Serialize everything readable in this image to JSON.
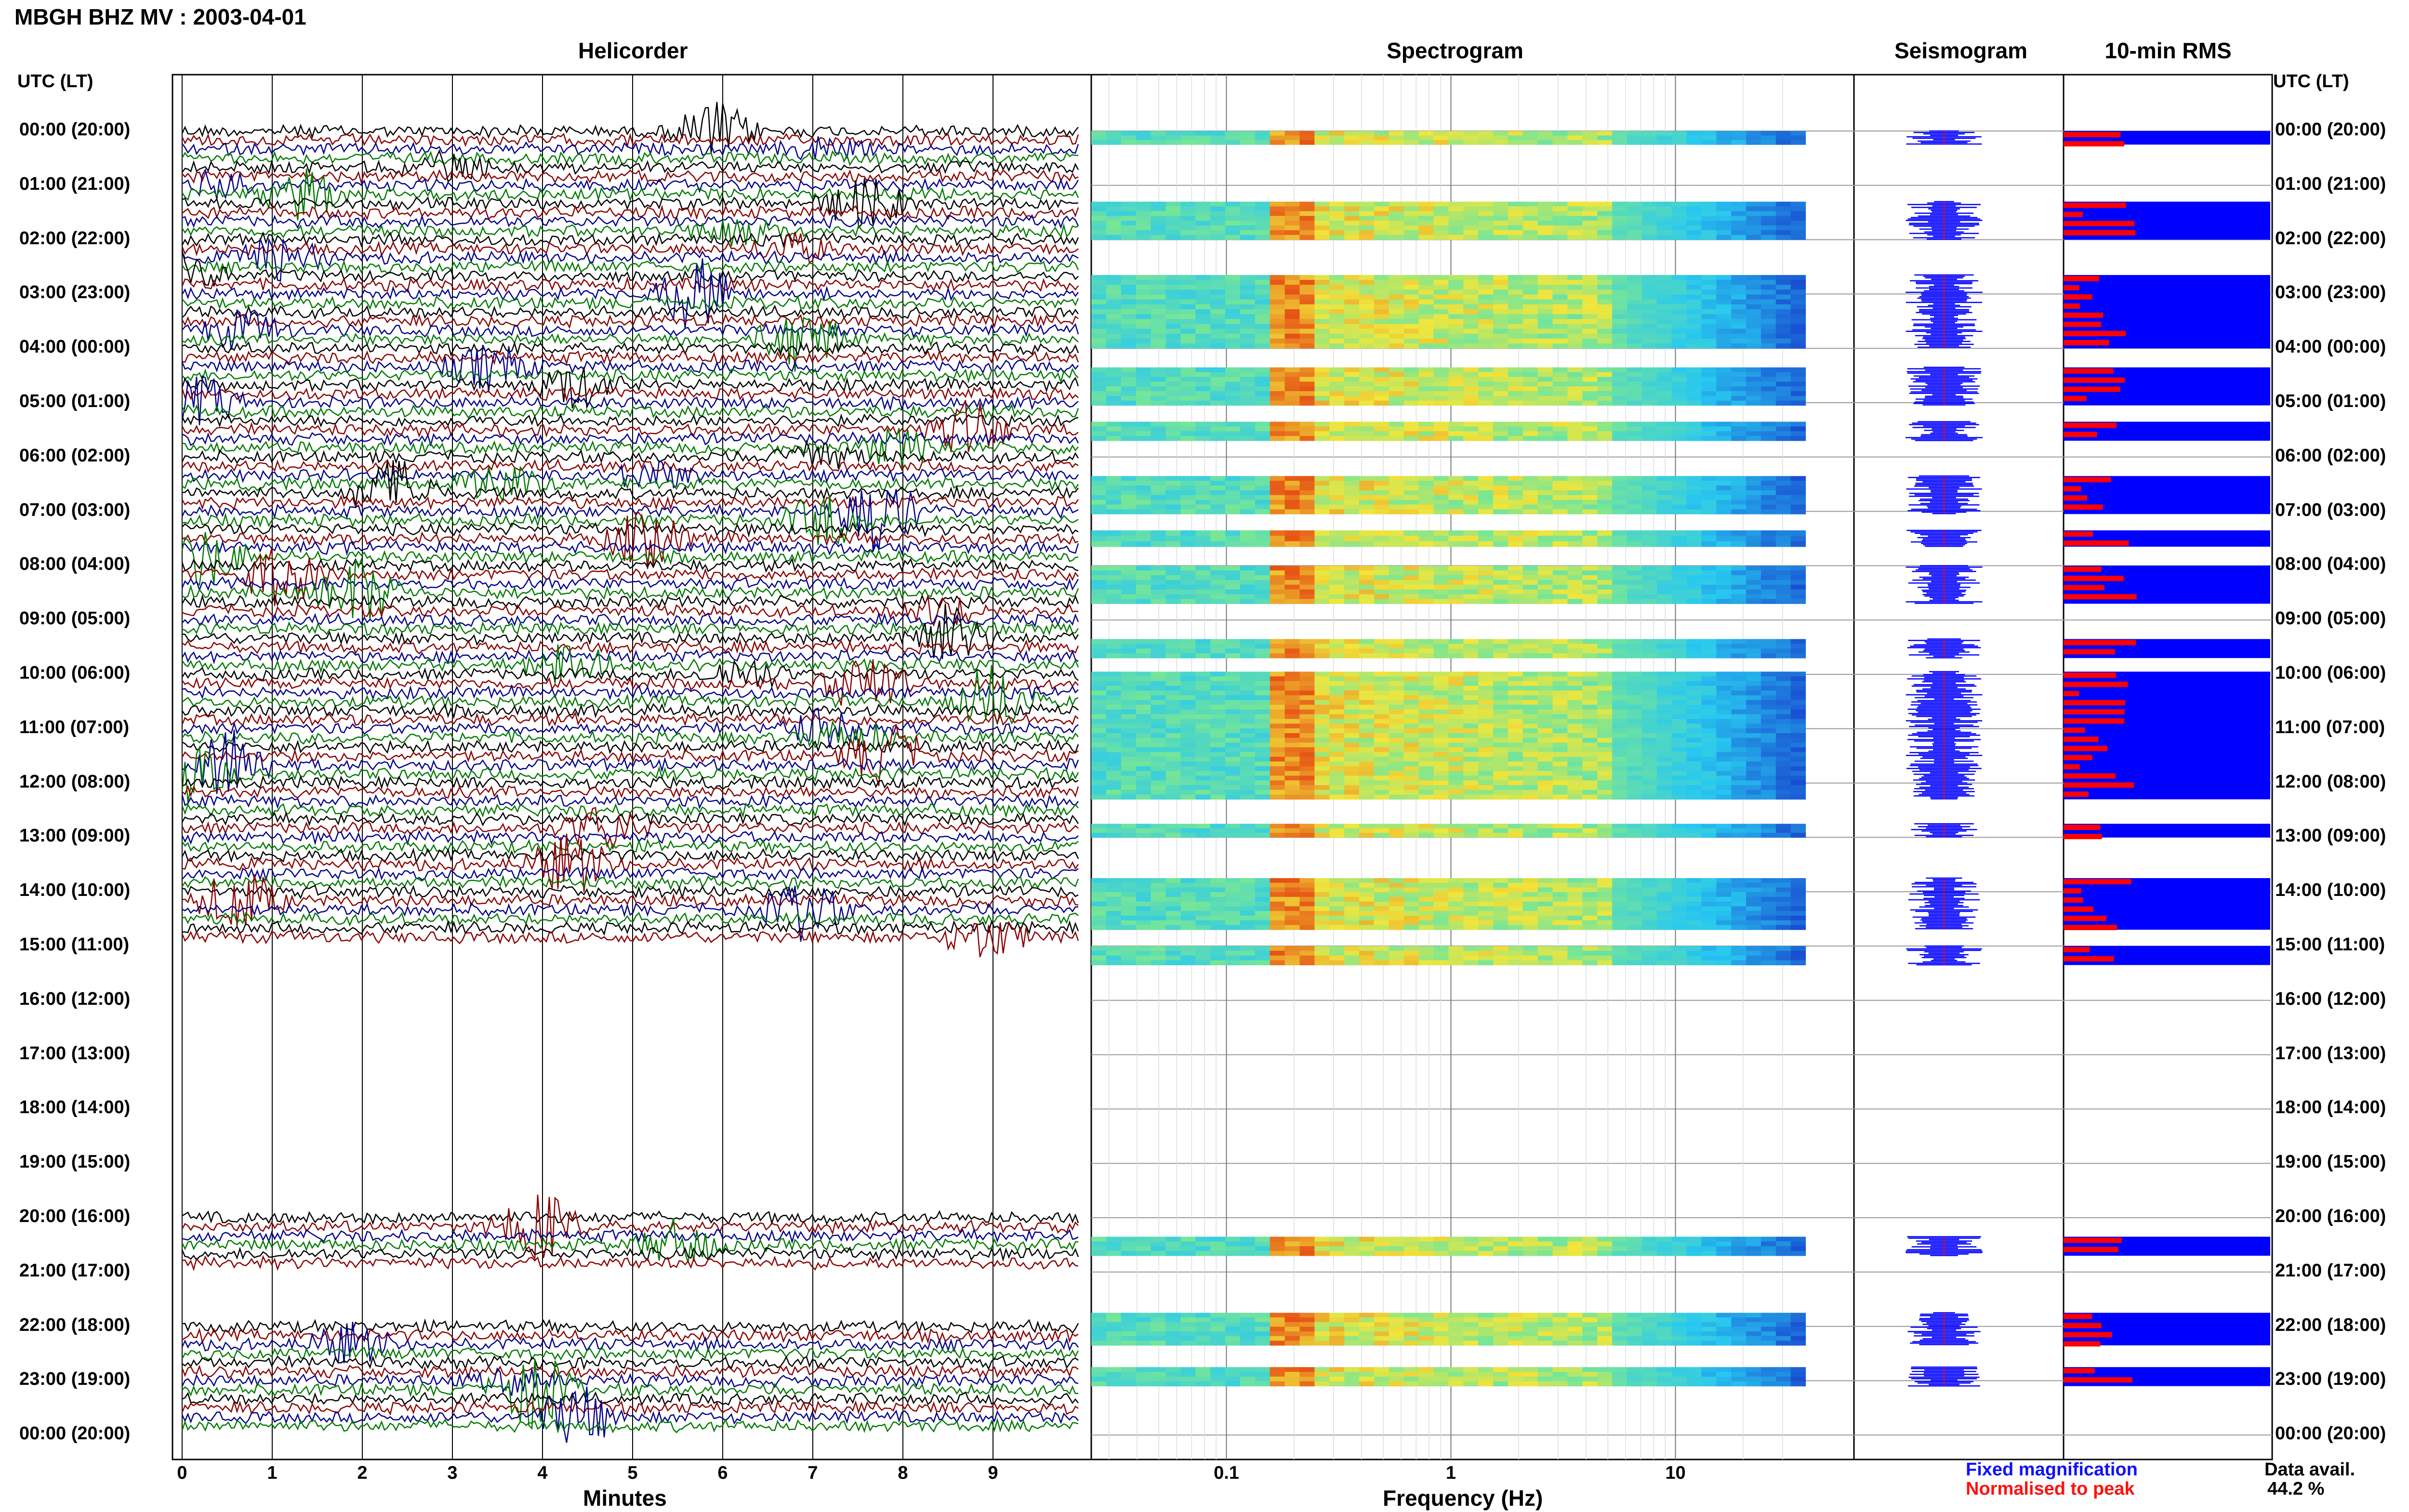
{
  "header": {
    "title": "MBGH BHZ MV : 2003-04-01",
    "panels": [
      "Helicorder",
      "Spectrogram",
      "Seismogram",
      "10-min RMS"
    ],
    "utc_header_left": "UTC (LT)",
    "utc_header_right": "UTC (LT)"
  },
  "time_labels": [
    "00:00 (20:00)",
    "01:00 (21:00)",
    "02:00 (22:00)",
    "03:00 (23:00)",
    "04:00 (00:00)",
    "05:00 (01:00)",
    "06:00 (02:00)",
    "07:00 (03:00)",
    "08:00 (04:00)",
    "09:00 (05:00)",
    "10:00 (06:00)",
    "11:00 (07:00)",
    "12:00 (08:00)",
    "13:00 (09:00)",
    "14:00 (10:00)",
    "15:00 (11:00)",
    "16:00 (12:00)",
    "17:00 (13:00)",
    "18:00 (14:00)",
    "19:00 (15:00)",
    "20:00 (16:00)",
    "21:00 (17:00)",
    "22:00 (18:00)",
    "23:00 (19:00)",
    "00:00 (20:00)"
  ],
  "footer": {
    "helicorder_xlabel": "Minutes",
    "spectrogram_xlabel": "Frequency (Hz)",
    "legend_fixed": "Fixed magnification",
    "legend_normalised": "Normalised to peak",
    "data_avail_label": "Data avail.",
    "data_avail_value": "44.2 %"
  },
  "colors": {
    "trace_colors": [
      "#000000",
      "#8b0000",
      "#00008b",
      "#007a00"
    ],
    "rms_fixed": "#0000ff",
    "rms_normalised": "#ff0000"
  },
  "chart_data": {
    "type": "heatmap",
    "helicorder": {
      "xlabel": "Minutes",
      "xticks": [
        "0",
        "1",
        "2",
        "3",
        "4",
        "5",
        "6",
        "7",
        "8",
        "9"
      ],
      "xlim": [
        0,
        10
      ],
      "rows_per_hour": 6,
      "data_hours": [
        0,
        1,
        2,
        3,
        4,
        5,
        6,
        7,
        8,
        9,
        10,
        11,
        12,
        13,
        14,
        20,
        22,
        23
      ]
    },
    "spectrogram": {
      "xlabel": "Frequency (Hz)",
      "xscale": "log",
      "xticks": [
        "0.1",
        "1",
        "10"
      ],
      "xlim": [
        0.025,
        40
      ]
    },
    "rms_segments_hours": [
      [
        0,
        0.25
      ],
      [
        1.3,
        2.0
      ],
      [
        2.65,
        4.0
      ],
      [
        4.35,
        5.05
      ],
      [
        5.35,
        5.7
      ],
      [
        6.35,
        7.05
      ],
      [
        7.35,
        7.65
      ],
      [
        8.0,
        8.7
      ],
      [
        9.35,
        9.7
      ],
      [
        9.95,
        12.3
      ],
      [
        12.75,
        13.0
      ],
      [
        13.75,
        14.7
      ],
      [
        15.0,
        15.35
      ],
      [
        20.35,
        20.7
      ],
      [
        21.75,
        22.35
      ],
      [
        22.75,
        23.1
      ]
    ]
  }
}
